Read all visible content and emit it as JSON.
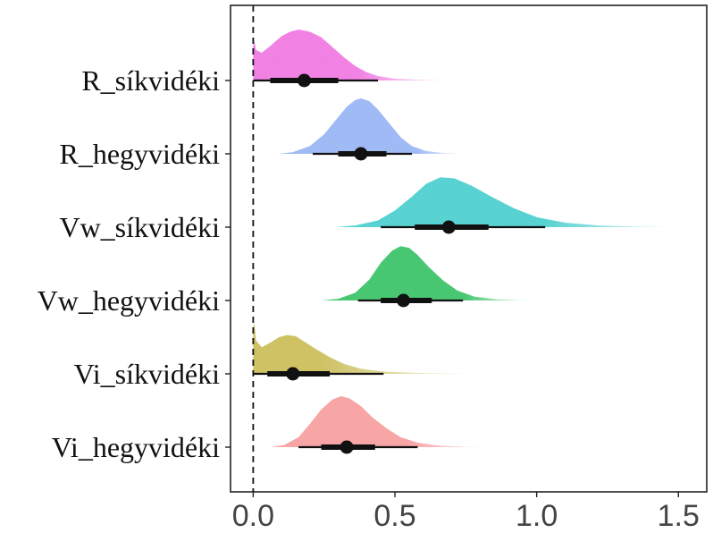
{
  "chart_data": {
    "type": "halfeye",
    "title": "",
    "xlabel": "",
    "ylabel": "",
    "xlim": [
      -0.08,
      1.6
    ],
    "xticks": [
      0.0,
      0.5,
      1.0,
      1.5
    ],
    "xtick_labels": [
      "0.0",
      "0.5",
      "1.0",
      "1.5"
    ],
    "reference_line": {
      "x": 0.0,
      "style": "dashed"
    },
    "grid": false,
    "legend": "none",
    "categories": [
      "R_síkvidéki",
      "R_hegyvidéki",
      "Vw_síkvidéki",
      "Vw_hegyvidéki",
      "Vi_síkvidéki",
      "Vi_hegyvidéki"
    ],
    "series": [
      {
        "label": "R_síkvidéki",
        "color": "#f07ce3",
        "point": 0.18,
        "interval_66": [
          0.06,
          0.3
        ],
        "interval_95": [
          0.0,
          0.44
        ],
        "density": [
          [
            0.0,
            0.62
          ],
          [
            0.004,
            0.72
          ],
          [
            0.01,
            0.55
          ],
          [
            0.03,
            0.5
          ],
          [
            0.06,
            0.62
          ],
          [
            0.1,
            0.8
          ],
          [
            0.13,
            0.88
          ],
          [
            0.16,
            0.92
          ],
          [
            0.2,
            0.88
          ],
          [
            0.24,
            0.78
          ],
          [
            0.28,
            0.6
          ],
          [
            0.32,
            0.42
          ],
          [
            0.36,
            0.26
          ],
          [
            0.4,
            0.15
          ],
          [
            0.44,
            0.08
          ],
          [
            0.5,
            0.03
          ],
          [
            0.6,
            0.01
          ],
          [
            0.7,
            0.0
          ]
        ]
      },
      {
        "label": "R_hegyvidéki",
        "color": "#9bb6f6",
        "point": 0.38,
        "interval_66": [
          0.3,
          0.47
        ],
        "interval_95": [
          0.21,
          0.56
        ],
        "density": [
          [
            0.09,
            0.0
          ],
          [
            0.14,
            0.03
          ],
          [
            0.2,
            0.14
          ],
          [
            0.25,
            0.35
          ],
          [
            0.29,
            0.6
          ],
          [
            0.33,
            0.85
          ],
          [
            0.36,
            0.97
          ],
          [
            0.38,
            1.0
          ],
          [
            0.41,
            0.95
          ],
          [
            0.44,
            0.8
          ],
          [
            0.48,
            0.55
          ],
          [
            0.52,
            0.3
          ],
          [
            0.56,
            0.14
          ],
          [
            0.61,
            0.05
          ],
          [
            0.67,
            0.015
          ],
          [
            0.74,
            0.0
          ]
        ]
      },
      {
        "label": "Vw_síkvidéki",
        "color": "#4fcfcf",
        "point": 0.69,
        "interval_66": [
          0.57,
          0.83
        ],
        "interval_95": [
          0.45,
          1.03
        ],
        "density": [
          [
            0.29,
            0.0
          ],
          [
            0.36,
            0.03
          ],
          [
            0.44,
            0.12
          ],
          [
            0.5,
            0.3
          ],
          [
            0.56,
            0.55
          ],
          [
            0.61,
            0.78
          ],
          [
            0.66,
            0.9
          ],
          [
            0.71,
            0.88
          ],
          [
            0.77,
            0.75
          ],
          [
            0.84,
            0.55
          ],
          [
            0.92,
            0.34
          ],
          [
            1.0,
            0.18
          ],
          [
            1.1,
            0.08
          ],
          [
            1.22,
            0.03
          ],
          [
            1.35,
            0.01
          ],
          [
            1.5,
            0.0
          ]
        ]
      },
      {
        "label": "Vw_hegyvidéki",
        "color": "#3fc46b",
        "point": 0.53,
        "interval_66": [
          0.45,
          0.63
        ],
        "interval_95": [
          0.37,
          0.74
        ],
        "density": [
          [
            0.24,
            0.0
          ],
          [
            0.3,
            0.03
          ],
          [
            0.36,
            0.14
          ],
          [
            0.41,
            0.38
          ],
          [
            0.45,
            0.68
          ],
          [
            0.49,
            0.9
          ],
          [
            0.52,
            0.98
          ],
          [
            0.55,
            0.95
          ],
          [
            0.58,
            0.82
          ],
          [
            0.62,
            0.6
          ],
          [
            0.67,
            0.36
          ],
          [
            0.72,
            0.18
          ],
          [
            0.78,
            0.07
          ],
          [
            0.86,
            0.02
          ],
          [
            0.98,
            0.0
          ]
        ]
      },
      {
        "label": "Vi_síkvidéki",
        "color": "#cbbf5c",
        "point": 0.14,
        "interval_66": [
          0.05,
          0.27
        ],
        "interval_95": [
          0.0,
          0.46
        ],
        "density": [
          [
            0.0,
            0.82
          ],
          [
            0.004,
            0.92
          ],
          [
            0.01,
            0.6
          ],
          [
            0.03,
            0.48
          ],
          [
            0.06,
            0.56
          ],
          [
            0.09,
            0.66
          ],
          [
            0.12,
            0.7
          ],
          [
            0.15,
            0.68
          ],
          [
            0.18,
            0.58
          ],
          [
            0.22,
            0.45
          ],
          [
            0.27,
            0.3
          ],
          [
            0.32,
            0.18
          ],
          [
            0.38,
            0.09
          ],
          [
            0.46,
            0.04
          ],
          [
            0.6,
            0.012
          ],
          [
            0.8,
            0.0
          ]
        ]
      },
      {
        "label": "Vi_hegyvidéki",
        "color": "#f7a0a0",
        "point": 0.33,
        "interval_66": [
          0.24,
          0.43
        ],
        "interval_95": [
          0.16,
          0.58
        ],
        "density": [
          [
            0.06,
            0.0
          ],
          [
            0.11,
            0.04
          ],
          [
            0.16,
            0.18
          ],
          [
            0.2,
            0.42
          ],
          [
            0.24,
            0.68
          ],
          [
            0.28,
            0.86
          ],
          [
            0.31,
            0.92
          ],
          [
            0.34,
            0.88
          ],
          [
            0.38,
            0.74
          ],
          [
            0.42,
            0.54
          ],
          [
            0.47,
            0.34
          ],
          [
            0.52,
            0.18
          ],
          [
            0.58,
            0.08
          ],
          [
            0.66,
            0.025
          ],
          [
            0.76,
            0.005
          ],
          [
            0.85,
            0.0
          ]
        ]
      }
    ]
  }
}
